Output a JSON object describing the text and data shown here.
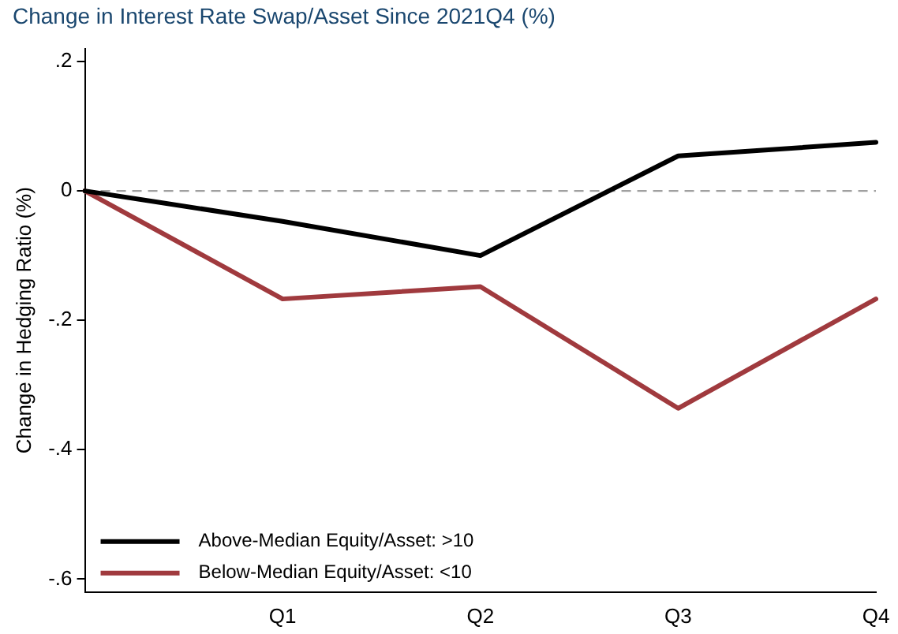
{
  "chart_data": {
    "type": "line",
    "title": "Change in Interest Rate Swap/Asset Since 2021Q4 (%)",
    "ylabel": "Change in Hedging Ratio (%)",
    "categories": [
      null,
      "Q1",
      "Q2",
      "Q3",
      "Q4"
    ],
    "series": [
      {
        "name": "Above-Median Equity/Asset: >10",
        "color": "#000000",
        "values": [
          0,
          -0.047,
          -0.1,
          0.054,
          0.075
        ]
      },
      {
        "name": "Below-Median Equity/Asset: <10",
        "color": "#a03a3e",
        "values": [
          0,
          -0.167,
          -0.148,
          -0.336,
          -0.167
        ]
      }
    ],
    "ylim": [
      -0.62,
      0.22
    ],
    "yticks": [
      {
        "value": -0.6,
        "label": "-.6"
      },
      {
        "value": -0.4,
        "label": "-.4"
      },
      {
        "value": -0.2,
        "label": "-.2"
      },
      {
        "value": 0,
        "label": "0"
      },
      {
        "value": 0.2,
        "label": ".2"
      }
    ],
    "ref_lines": [
      {
        "axis": "y",
        "value": 0,
        "color": "#a0a0a0",
        "line_style": "dashed"
      }
    ],
    "legend": "bottom left",
    "grid": false,
    "marker": "none",
    "line_style": "solid"
  }
}
